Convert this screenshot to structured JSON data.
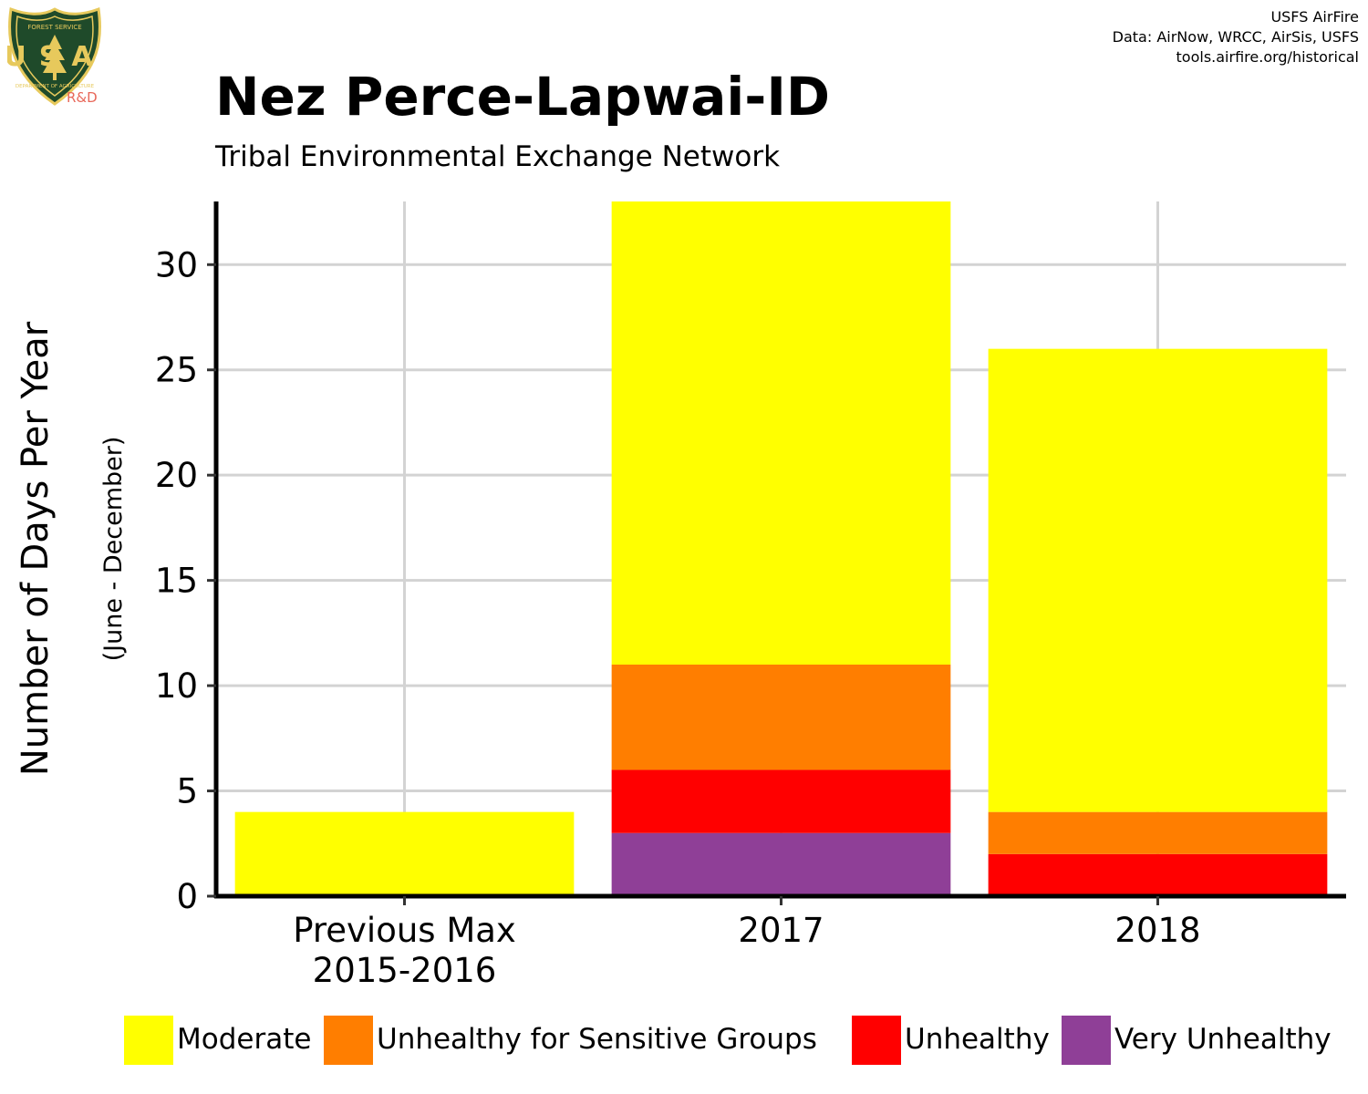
{
  "header": {
    "logo_text_top": "FOREST SERVICE",
    "logo_text_letters": "USA",
    "logo_text_bottom": "DEPARTMENT OF AGRICULTURE",
    "logo_badge": "R&D",
    "credits": [
      "USFS AirFire",
      "Data: AirNow, WRCC, AirSis, USFS",
      "tools.airfire.org/historical"
    ]
  },
  "colors": {
    "Moderate": "#ffff00",
    "Unhealthy for Sensitive Groups": "#ff7e00",
    "Unhealthy": "#ff0000",
    "Very Unhealthy": "#8f3f97",
    "grid": "#d3d3d3",
    "axis": "#000000",
    "logo_green": "#1f4a2a",
    "logo_gold": "#e7c95c"
  },
  "chart_data": {
    "type": "bar",
    "stacked": true,
    "title": "Nez Perce-Lapwai-ID",
    "subtitle": "Tribal Environmental Exchange Network",
    "xlabel": "",
    "ylabel": "Number of Days Per Year",
    "ylabel_sub": "(June - December)",
    "categories": [
      "Previous Max\n2015-2016",
      "2017",
      "2018"
    ],
    "ylim": [
      0,
      33
    ],
    "yticks": [
      0,
      5,
      10,
      15,
      20,
      25,
      30
    ],
    "grid": true,
    "legend_position": "bottom",
    "series": [
      {
        "name": "Very Unhealthy",
        "values": [
          0,
          3,
          0
        ]
      },
      {
        "name": "Unhealthy",
        "values": [
          0,
          3,
          2
        ]
      },
      {
        "name": "Unhealthy for Sensitive Groups",
        "values": [
          0,
          5,
          2
        ]
      },
      {
        "name": "Moderate",
        "values": [
          4,
          22,
          22
        ]
      }
    ],
    "legend": [
      "Moderate",
      "Unhealthy for Sensitive Groups",
      "Unhealthy",
      "Very Unhealthy"
    ]
  }
}
